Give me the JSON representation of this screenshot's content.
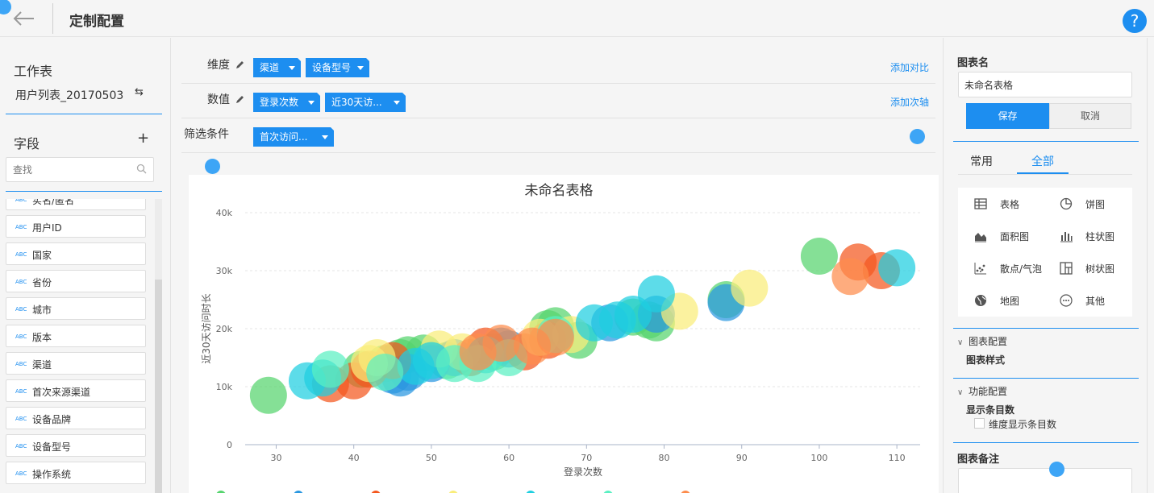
{
  "header": {
    "title": "定制配置",
    "help_label": "?"
  },
  "left": {
    "worksheet_heading": "工作表",
    "worksheet_name": "用户列表_20170503",
    "fields_heading": "字段",
    "search_placeholder": "查找",
    "field_type_badge": "ABC",
    "fields": [
      "实名/匿名",
      "用户ID",
      "国家",
      "省份",
      "城市",
      "版本",
      "渠道",
      "首次来源渠道",
      "设备品牌",
      "设备型号",
      "操作系统"
    ]
  },
  "config": {
    "dimension_label": "维度",
    "dimension_pills": [
      "渠道",
      "设备型号"
    ],
    "add_compare": "添加对比",
    "value_label": "数值",
    "value_pills": [
      "登录次数",
      "近30天访..."
    ],
    "add_axis": "添加次轴",
    "filter_label": "筛选条件",
    "filter_pills": [
      "首次访问..."
    ]
  },
  "right": {
    "chart_name_heading": "图表名",
    "chart_name_value": "未命名表格",
    "save_label": "保存",
    "cancel_label": "取消",
    "tab_common": "常用",
    "tab_all": "全部",
    "chart_types": [
      {
        "label": "表格",
        "icon": "table-icon"
      },
      {
        "label": "饼图",
        "icon": "pie-icon"
      },
      {
        "label": "面积图",
        "icon": "area-icon"
      },
      {
        "label": "柱状图",
        "icon": "bar-icon"
      },
      {
        "label": "散点/气泡",
        "icon": "scatter-icon"
      },
      {
        "label": "树状图",
        "icon": "treemap-icon"
      },
      {
        "label": "地图",
        "icon": "globe-icon"
      },
      {
        "label": "其他",
        "icon": "more-icon"
      }
    ],
    "chart_config": "图表配置",
    "chart_style": "图表样式",
    "func_config": "功能配置",
    "display_count": "显示条目数",
    "dim_display_count": "维度显示条目数",
    "remark_heading": "图表备注"
  },
  "chart_data": {
    "type": "scatter",
    "title": "未命名表格",
    "xlabel": "登录次数",
    "ylabel": "近30天访问时长",
    "xlim": [
      26,
      113
    ],
    "ylim": [
      0,
      40000
    ],
    "xticks": [
      30,
      40,
      50,
      60,
      70,
      80,
      90,
      100,
      110
    ],
    "yticks": [
      0,
      10000,
      20000,
      30000,
      40000
    ],
    "ytick_labels": [
      "0",
      "10k",
      "20k",
      "30k",
      "40k"
    ],
    "grid": true,
    "series": [
      {
        "color": "#56d46e",
        "points": [
          [
            29,
            8500
          ],
          [
            41,
            13000
          ],
          [
            44,
            14000
          ],
          [
            46,
            15000
          ],
          [
            47,
            15500
          ],
          [
            49,
            15800
          ],
          [
            52,
            14500
          ],
          [
            58,
            16000
          ],
          [
            65,
            20000
          ],
          [
            66,
            20500
          ],
          [
            69,
            18000
          ],
          [
            76,
            22000
          ],
          [
            78,
            21500
          ],
          [
            79,
            21000
          ],
          [
            88,
            25000
          ],
          [
            100,
            32500
          ]
        ]
      },
      {
        "color": "#2a97e0",
        "points": [
          [
            45,
            12000
          ],
          [
            46,
            11500
          ],
          [
            47,
            12500
          ],
          [
            50,
            14000
          ],
          [
            53,
            15000
          ],
          [
            59,
            17000
          ],
          [
            60,
            16500
          ],
          [
            73,
            21000
          ],
          [
            79,
            22500
          ],
          [
            88,
            24500
          ]
        ]
      },
      {
        "color": "#f4571e",
        "points": [
          [
            37,
            10500
          ],
          [
            40,
            11000
          ],
          [
            42,
            13000
          ],
          [
            45,
            14500
          ],
          [
            55,
            15000
          ],
          [
            57,
            17000
          ],
          [
            62,
            16000
          ],
          [
            65,
            18000
          ],
          [
            105,
            31500
          ],
          [
            108,
            30000
          ]
        ]
      },
      {
        "color": "#f9ed7a",
        "points": [
          [
            42,
            14000
          ],
          [
            43,
            15000
          ],
          [
            51,
            16500
          ],
          [
            54,
            16000
          ],
          [
            64,
            18500
          ],
          [
            68,
            19000
          ],
          [
            82,
            23000
          ],
          [
            91,
            27000
          ]
        ]
      },
      {
        "color": "#1fcfe0",
        "points": [
          [
            34,
            11000
          ],
          [
            36,
            11500
          ],
          [
            48,
            13500
          ],
          [
            50,
            14500
          ],
          [
            57,
            15500
          ],
          [
            71,
            21000
          ],
          [
            74,
            21500
          ],
          [
            76,
            22500
          ],
          [
            79,
            26000
          ],
          [
            110,
            30500
          ]
        ]
      },
      {
        "color": "#5af0c2",
        "points": [
          [
            37,
            13000
          ],
          [
            44,
            12500
          ],
          [
            53,
            14000
          ],
          [
            56,
            14000
          ],
          [
            60,
            15000
          ],
          [
            66,
            19000
          ]
        ]
      },
      {
        "color": "#fd8c4c",
        "points": [
          [
            56,
            16000
          ],
          [
            59,
            17500
          ],
          [
            63,
            17000
          ],
          [
            66,
            18500
          ],
          [
            104,
            29000
          ]
        ]
      }
    ]
  }
}
